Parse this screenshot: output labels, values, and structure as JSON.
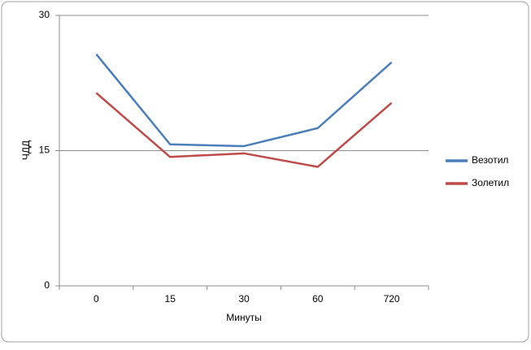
{
  "chart_data": {
    "type": "line",
    "categories": [
      "0",
      "15",
      "30",
      "60",
      "720"
    ],
    "series": [
      {
        "name": "Везотил",
        "color": "#4a7ebb",
        "values": [
          25.7,
          15.7,
          15.5,
          17.5,
          24.8
        ]
      },
      {
        "name": "Золетил",
        "color": "#be4b48",
        "values": [
          21.4,
          14.3,
          14.7,
          13.2,
          20.3
        ]
      }
    ],
    "ylim": [
      0,
      30
    ],
    "yticks": [
      0,
      15,
      30
    ],
    "grid": true,
    "xlabel": "Минуты",
    "ylabel": "ЧДД",
    "legend": "right"
  }
}
